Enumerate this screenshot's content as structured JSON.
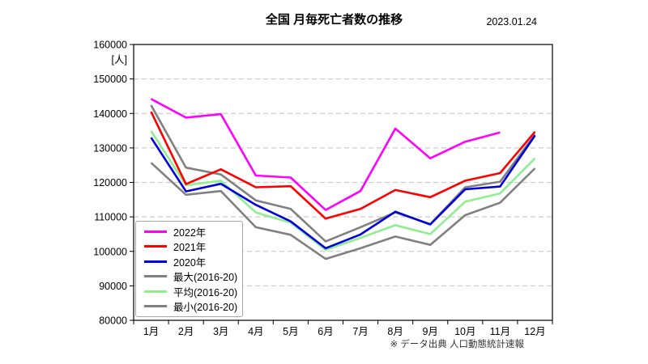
{
  "page": {
    "title": "全国 月毎死亡者数の推移",
    "date": "2023.01.24",
    "source_note": "※ データ出典 人口動態統計速報"
  },
  "chart_data": {
    "type": "line",
    "title": "全国 月毎死亡者数の推移",
    "unit_label": "[人]",
    "categories": [
      "1月",
      "2月",
      "3月",
      "4月",
      "5月",
      "6月",
      "7月",
      "8月",
      "9月",
      "10月",
      "11月",
      "12月"
    ],
    "y_axis": {
      "min": 80000,
      "max": 160000,
      "step": 10000
    },
    "grid": "horizontal-dashed",
    "legend_position": "inside-lower-left",
    "series": [
      {
        "name": "2022年",
        "color": "#FF00FF",
        "values": [
          144200,
          138800,
          139800,
          122000,
          121400,
          112000,
          117500,
          135600,
          127000,
          131800,
          134500,
          null
        ]
      },
      {
        "name": "2021年",
        "color": "#FF0000",
        "values": [
          140500,
          119500,
          123800,
          118600,
          118900,
          109500,
          112300,
          117800,
          115700,
          120500,
          122700,
          134700
        ]
      },
      {
        "name": "2020年",
        "color": "#0000DD",
        "values": [
          133000,
          117400,
          119600,
          113500,
          108700,
          100900,
          104900,
          111500,
          107800,
          118000,
          118800,
          133600
        ]
      },
      {
        "name": "最大(2016-20)",
        "color": "#808080",
        "values": [
          142400,
          124300,
          122300,
          114800,
          112300,
          102900,
          107000,
          111300,
          107900,
          118600,
          120200,
          133900
        ]
      },
      {
        "name": "平均(2016-20)",
        "color": "#90EE90",
        "values": [
          134900,
          119200,
          120500,
          111300,
          108300,
          100400,
          103900,
          107600,
          105000,
          114400,
          116800,
          127000
        ]
      },
      {
        "name": "最小(2016-20)",
        "color": "#808080",
        "values": [
          125700,
          116400,
          117500,
          107000,
          104800,
          97800,
          100900,
          104300,
          101900,
          110500,
          114100,
          124100
        ]
      }
    ]
  }
}
